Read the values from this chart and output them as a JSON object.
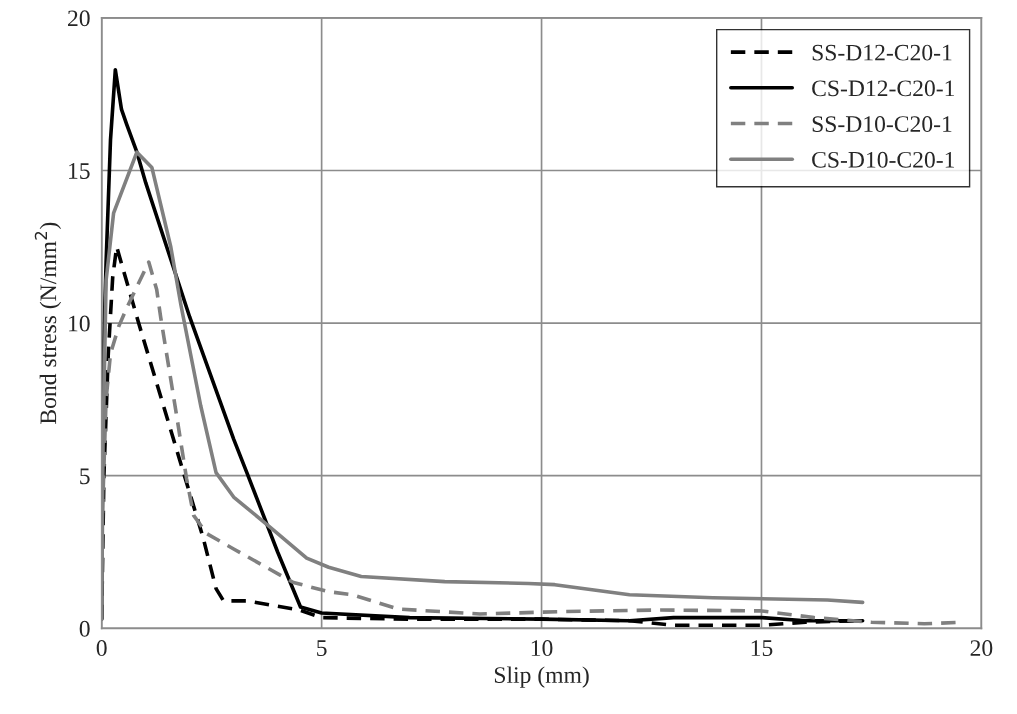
{
  "chart_data": {
    "type": "line",
    "xlabel": "Slip (mm)",
    "ylabel": "Bond stress (N/mm$^{2}$)",
    "xlim": [
      0,
      20
    ],
    "ylim": [
      0,
      20
    ],
    "xticks": [
      0,
      5,
      10,
      15,
      20
    ],
    "yticks": [
      0,
      5,
      10,
      15,
      20
    ],
    "grid": true,
    "legend": "top right",
    "marker": "none",
    "series": [
      {
        "name": "SS-D12-C20-1",
        "color": "#000000",
        "line_style": "dashed",
        "x": [
          0,
          0.05,
          0.15,
          0.25,
          0.34,
          0.84,
          1.34,
          1.86,
          2.3,
          2.6,
          2.77,
          3.3,
          4.5,
          5,
          7,
          10,
          12,
          13,
          15,
          16,
          17.3
        ],
        "values": [
          0.3,
          5,
          9,
          11.5,
          12.5,
          10,
          7.6,
          5.1,
          3,
          1.3,
          0.9,
          0.9,
          0.6,
          0.35,
          0.3,
          0.3,
          0.25,
          0.1,
          0.1,
          0.2,
          0.25
        ]
      },
      {
        "name": "CS-D12-C20-1",
        "color": "#000000",
        "line_style": "solid",
        "x": [
          0,
          0.02,
          0.1,
          0.2,
          0.31,
          0.45,
          0.57,
          0.8,
          1,
          2,
          3,
          3.3,
          4,
          4.52,
          5,
          7,
          10,
          12,
          13,
          15,
          16,
          17.3
        ],
        "values": [
          0.3,
          8,
          12,
          16,
          18.3,
          17,
          16.5,
          15.6,
          14.6,
          10.2,
          6.2,
          5.1,
          2.5,
          0.7,
          0.5,
          0.35,
          0.3,
          0.25,
          0.35,
          0.35,
          0.25,
          0.25
        ]
      },
      {
        "name": "SS-D10-C20-1",
        "color": "#808080",
        "line_style": "dashed",
        "x": [
          0,
          0.1,
          0.2,
          0.39,
          0.57,
          1.07,
          1.25,
          1.34,
          1.7,
          1.93,
          2.09,
          2.39,
          3,
          4.36,
          5.16,
          5.7,
          6.75,
          8.6,
          10.5,
          12.7,
          15,
          16.2,
          17.5,
          18.7,
          19.6
        ],
        "values": [
          3,
          7.5,
          9,
          9.9,
          10.5,
          12,
          11.1,
          10.2,
          7,
          4.9,
          3.7,
          3.1,
          2.6,
          1.5,
          1.2,
          1.1,
          0.63,
          0.47,
          0.55,
          0.6,
          0.57,
          0.35,
          0.2,
          0.15,
          0.2
        ]
      },
      {
        "name": "CS-D10-C20-1",
        "color": "#808080",
        "line_style": "solid",
        "x": [
          0,
          0.03,
          0.1,
          0.27,
          0.8,
          1.14,
          1.57,
          1.8,
          2.25,
          2.6,
          3,
          3.84,
          4.66,
          5.16,
          5.9,
          7.8,
          9.7,
          10.3,
          12,
          13.9,
          16.5,
          17.3
        ],
        "values": [
          0.3,
          6,
          11.4,
          13.6,
          15.6,
          15.1,
          12.5,
          10.6,
          7.3,
          5.1,
          4.3,
          3.3,
          2.3,
          2,
          1.7,
          1.53,
          1.47,
          1.43,
          1.1,
          1,
          0.93,
          0.85
        ]
      }
    ]
  }
}
